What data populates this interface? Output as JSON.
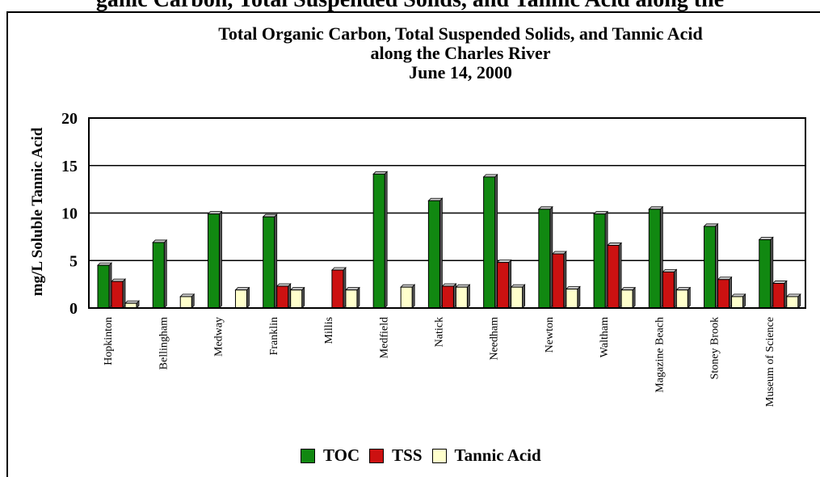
{
  "header": {
    "caption": "ganic Carbon, Total Suspended Solids, and Tannic Acid along the"
  },
  "chart_data": {
    "type": "bar",
    "title": [
      "Total Organic Carbon, Total Suspended Solids, and Tannic Acid",
      "along the Charles River",
      "June 14, 2000"
    ],
    "ylabel": "mg/L Soluble Tannic Acid",
    "xlabel": "",
    "ylim": [
      0,
      20
    ],
    "yticks": [
      "0",
      "5",
      "10",
      "15",
      "20"
    ],
    "categories": [
      "Hopkinton",
      "Bellingham",
      "Medway",
      "Franklin",
      "Millis",
      "Medfield",
      "Natick",
      "Needham",
      "Newton",
      "Waltham",
      "Magazine Beach",
      "Stoney Brook",
      "Museum of Science"
    ],
    "series": [
      {
        "name": "TOC",
        "color": "#118811",
        "values": [
          4.5,
          6.9,
          9.9,
          9.6,
          null,
          14.1,
          11.3,
          13.8,
          10.4,
          9.9,
          10.4,
          8.6,
          7.2
        ]
      },
      {
        "name": "TSS",
        "color": "#cc1111",
        "values": [
          2.8,
          null,
          null,
          2.3,
          4.0,
          null,
          2.3,
          4.8,
          5.7,
          6.6,
          3.8,
          3.0,
          2.6
        ]
      },
      {
        "name": "Tannic Acid",
        "color": "#ffffcc",
        "values": [
          0.5,
          1.2,
          1.9,
          1.9,
          1.9,
          2.2,
          2.2,
          2.2,
          2.0,
          1.9,
          1.9,
          1.2,
          1.2
        ]
      }
    ],
    "grid": true,
    "legend_position": "bottom"
  }
}
